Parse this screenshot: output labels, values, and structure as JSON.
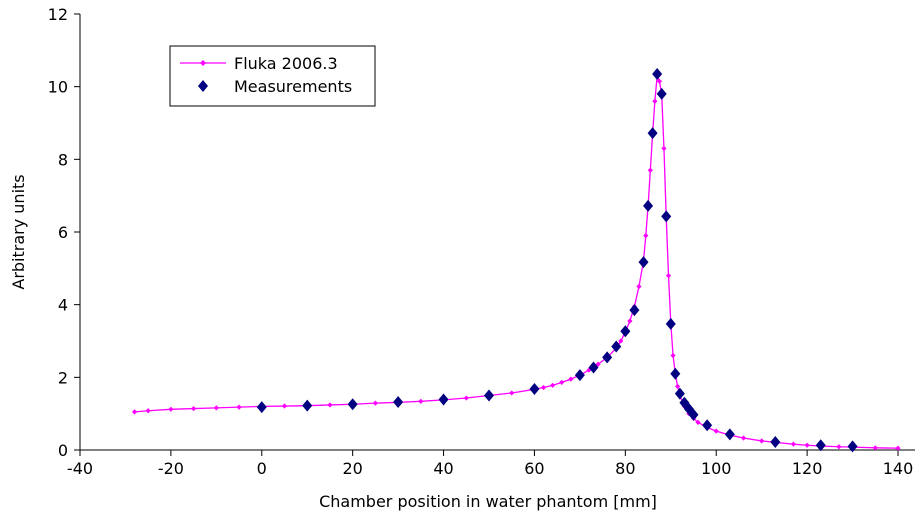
{
  "chart_data": {
    "type": "line",
    "xlabel": "Chamber position in water phantom [mm]",
    "ylabel": "Arbitrary units",
    "xlim": [
      -40,
      140
    ],
    "ylim": [
      0,
      12
    ],
    "xticks": [
      "-40",
      "-20",
      "0",
      "20",
      "40",
      "60",
      "80",
      "100",
      "120",
      "140"
    ],
    "yticks": [
      "0",
      "2",
      "4",
      "6",
      "8",
      "10",
      "12"
    ],
    "legend_position": "top-left",
    "series": [
      {
        "name": "Fluka 2006.3",
        "style": "line-with-small-markers",
        "color": "#ff00ff",
        "x": [
          -28,
          -25,
          -20,
          -15,
          -10,
          -5,
          0,
          5,
          10,
          15,
          20,
          25,
          30,
          35,
          40,
          45,
          50,
          55,
          60,
          62,
          64,
          66,
          68,
          70,
          72,
          74,
          76,
          78,
          79,
          80,
          81,
          82,
          83,
          84,
          84.5,
          85,
          85.5,
          86,
          86.5,
          87,
          87.5,
          88,
          88.5,
          89,
          89.5,
          90,
          90.5,
          91,
          91.5,
          92,
          93,
          94,
          95,
          96,
          98,
          100,
          103,
          106,
          110,
          113,
          117,
          120,
          123,
          127,
          130,
          135,
          140
        ],
        "y": [
          1.05,
          1.08,
          1.12,
          1.14,
          1.16,
          1.18,
          1.2,
          1.21,
          1.22,
          1.24,
          1.26,
          1.29,
          1.31,
          1.34,
          1.38,
          1.43,
          1.5,
          1.57,
          1.67,
          1.72,
          1.78,
          1.86,
          1.95,
          2.06,
          2.2,
          2.36,
          2.55,
          2.8,
          3.0,
          3.25,
          3.55,
          3.95,
          4.5,
          5.2,
          5.9,
          6.7,
          7.7,
          8.7,
          9.6,
          10.3,
          10.15,
          9.8,
          8.3,
          6.4,
          4.8,
          3.5,
          2.6,
          2.1,
          1.75,
          1.5,
          1.2,
          1.0,
          0.87,
          0.76,
          0.62,
          0.52,
          0.41,
          0.33,
          0.25,
          0.21,
          0.16,
          0.13,
          0.11,
          0.09,
          0.08,
          0.06,
          0.05
        ]
      },
      {
        "name": "Measurements",
        "style": "diamond-markers",
        "color": "#000080",
        "x": [
          0,
          10,
          20,
          30,
          40,
          50,
          60,
          70,
          73,
          76,
          78,
          80,
          82,
          84,
          85,
          86,
          87,
          88,
          89,
          90,
          91,
          92,
          93,
          94,
          95,
          98,
          103,
          113,
          123,
          130
        ],
        "y": [
          1.18,
          1.22,
          1.26,
          1.32,
          1.39,
          1.5,
          1.68,
          2.06,
          2.27,
          2.55,
          2.85,
          3.27,
          3.85,
          5.17,
          6.72,
          8.72,
          10.35,
          9.8,
          6.43,
          3.47,
          2.1,
          1.55,
          1.3,
          1.13,
          0.97,
          0.68,
          0.43,
          0.22,
          0.13,
          0.1
        ]
      }
    ]
  }
}
